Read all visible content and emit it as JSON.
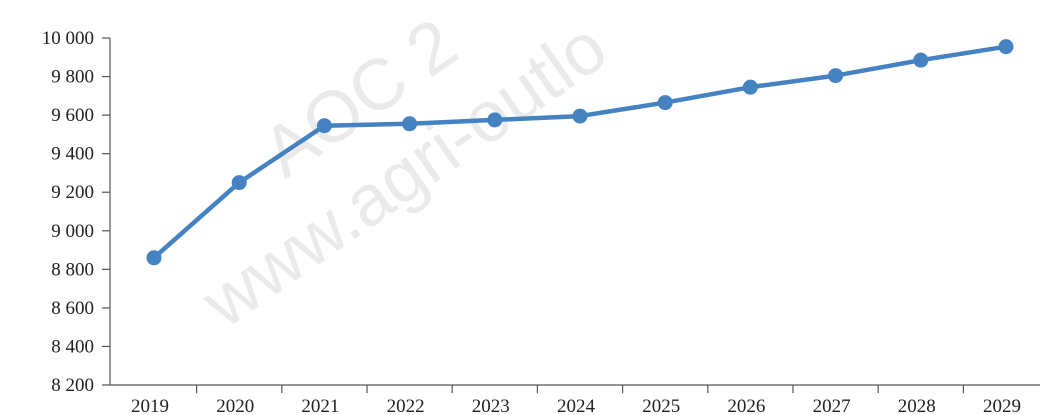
{
  "chart_data": {
    "type": "line",
    "x": [
      "2019",
      "2020",
      "2021",
      "2022",
      "2023",
      "2024",
      "2025",
      "2026",
      "2027",
      "2028",
      "2029"
    ],
    "series": [
      {
        "values": [
          8860,
          9250,
          9545,
          9555,
          9575,
          9595,
          9665,
          9745,
          9805,
          9885,
          9955
        ],
        "color": "#4582c2"
      }
    ],
    "ylim": [
      8200,
      10000
    ],
    "yticks": [
      8200,
      8400,
      8600,
      8800,
      9000,
      9200,
      9400,
      9600,
      9800,
      10000
    ],
    "ytick_labels": [
      "8 200",
      "8 400",
      "8 600",
      "8 800",
      "9 000",
      "9 200",
      "9 400",
      "9 600",
      "9 800",
      "10 000"
    ],
    "grid": false,
    "legend": "none",
    "title": "",
    "xlabel": "",
    "ylabel": ""
  },
  "watermark": {
    "line1": "AOC 2",
    "line2": "www.agri-outlo"
  }
}
